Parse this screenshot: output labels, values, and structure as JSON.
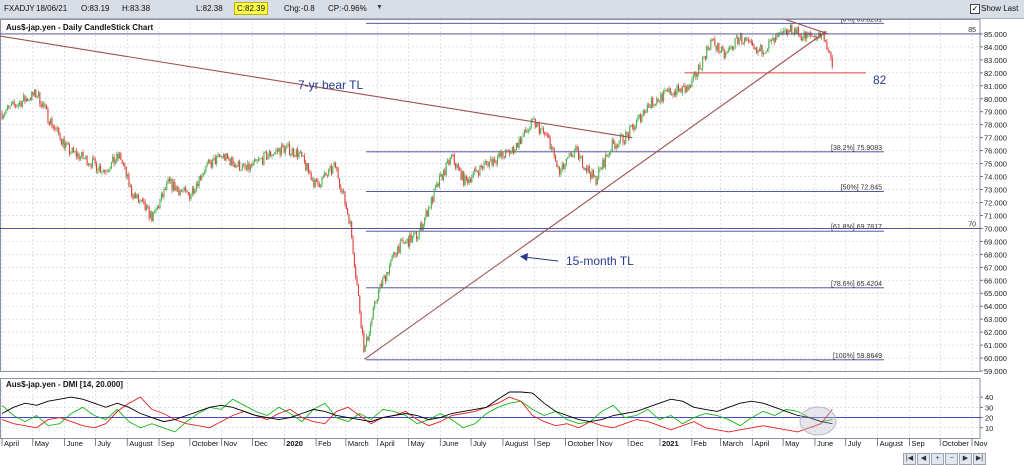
{
  "toolbar": {
    "symbol": "FXADJY",
    "date": "18/06/21",
    "open": "O:83.19",
    "high": "H:83.38",
    "low": "L:82.38",
    "close": "C:82.39",
    "change": "Chg:-0.8",
    "change_pct": "CP:-0.96%",
    "show_last_label": "Show Last",
    "show_last_checked": true
  },
  "colors": {
    "bull_candle": "#4caf50",
    "bear_candle": "#e0403a",
    "trendline": "#a05050",
    "fib_line": "#404090",
    "grid": "#c8cedc",
    "annotation_text": "#283a8c",
    "pdi": "#18b818",
    "mdi": "#e02020",
    "adx": "#000000",
    "highlight": "#b8b8c8"
  },
  "chart_data": [
    {
      "type": "candlestick",
      "title": "Aus$-jap.yen - Daily CandleStick Chart",
      "ylim": [
        59,
        86
      ],
      "y_ticks": [
        "59.000",
        "60.000",
        "61.000",
        "62.000",
        "63.000",
        "64.000",
        "65.000",
        "66.000",
        "67.000",
        "68.000",
        "69.000",
        "70.000",
        "71.000",
        "72.000",
        "73.000",
        "74.000",
        "75.000",
        "76.000",
        "77.000",
        "78.000",
        "79.000",
        "80.000",
        "81.000",
        "82.000",
        "83.000",
        "84.000",
        "85.000"
      ],
      "x_axis_labels": [
        "April",
        "May",
        "June",
        "July",
        "August",
        "Sep",
        "October",
        "Nov",
        "Dec",
        "2020",
        "Feb",
        "March",
        "April",
        "May",
        "June",
        "July",
        "August",
        "Sep",
        "October",
        "Nov",
        "Dec",
        "2021",
        "Feb",
        "March",
        "April",
        "May",
        "June",
        "July",
        "August",
        "Sep",
        "October",
        "Nov"
      ],
      "x_axis_bold": [
        "2020",
        "2021"
      ],
      "close_path_anchors": [
        {
          "date": "2019-04-01",
          "close": 78.9
        },
        {
          "date": "2019-04-20",
          "close": 79.8
        },
        {
          "date": "2019-05-05",
          "close": 80.4
        },
        {
          "date": "2019-05-20",
          "close": 78.0
        },
        {
          "date": "2019-06-05",
          "close": 76.0
        },
        {
          "date": "2019-06-20",
          "close": 75.4
        },
        {
          "date": "2019-07-10",
          "close": 74.5
        },
        {
          "date": "2019-07-25",
          "close": 75.6
        },
        {
          "date": "2019-08-05",
          "close": 72.8
        },
        {
          "date": "2019-08-26",
          "close": 70.8
        },
        {
          "date": "2019-09-10",
          "close": 73.5
        },
        {
          "date": "2019-09-30",
          "close": 72.5
        },
        {
          "date": "2019-10-15",
          "close": 74.6
        },
        {
          "date": "2019-11-01",
          "close": 75.6
        },
        {
          "date": "2019-11-25",
          "close": 74.5
        },
        {
          "date": "2019-12-15",
          "close": 75.6
        },
        {
          "date": "2019-12-31",
          "close": 76.2
        },
        {
          "date": "2020-01-15",
          "close": 75.8
        },
        {
          "date": "2020-02-01",
          "close": 73.3
        },
        {
          "date": "2020-02-20",
          "close": 74.8
        },
        {
          "date": "2020-03-05",
          "close": 70.5
        },
        {
          "date": "2020-03-19",
          "close": 60.5
        },
        {
          "date": "2020-04-01",
          "close": 65.0
        },
        {
          "date": "2020-04-20",
          "close": 68.5
        },
        {
          "date": "2020-05-10",
          "close": 69.5
        },
        {
          "date": "2020-06-01",
          "close": 73.8
        },
        {
          "date": "2020-06-12",
          "close": 75.5
        },
        {
          "date": "2020-06-25",
          "close": 73.6
        },
        {
          "date": "2020-07-15",
          "close": 75.0
        },
        {
          "date": "2020-08-10",
          "close": 76.0
        },
        {
          "date": "2020-08-31",
          "close": 78.2
        },
        {
          "date": "2020-09-15",
          "close": 76.8
        },
        {
          "date": "2020-09-25",
          "close": 74.2
        },
        {
          "date": "2020-10-10",
          "close": 76.0
        },
        {
          "date": "2020-10-30",
          "close": 73.7
        },
        {
          "date": "2020-11-15",
          "close": 76.4
        },
        {
          "date": "2020-12-01",
          "close": 77.2
        },
        {
          "date": "2020-12-20",
          "close": 79.5
        },
        {
          "date": "2021-01-10",
          "close": 80.5
        },
        {
          "date": "2021-01-30",
          "close": 80.8
        },
        {
          "date": "2021-02-20",
          "close": 84.5
        },
        {
          "date": "2021-03-05",
          "close": 83.3
        },
        {
          "date": "2021-03-20",
          "close": 84.8
        },
        {
          "date": "2021-04-05",
          "close": 83.5
        },
        {
          "date": "2021-04-25",
          "close": 84.6
        },
        {
          "date": "2021-05-10",
          "close": 85.4
        },
        {
          "date": "2021-05-20",
          "close": 84.8
        },
        {
          "date": "2021-06-10",
          "close": 84.9
        },
        {
          "date": "2021-06-18",
          "close": 82.39
        }
      ],
      "fib_levels": [
        {
          "label": "[0%] 85.8251",
          "value": 85.8251
        },
        {
          "label": "[38.2%] 75.9083",
          "value": 75.9083
        },
        {
          "label": "[50%] 72.845",
          "value": 72.845
        },
        {
          "label": "[61.8%] 69.7817",
          "value": 69.7817
        },
        {
          "label": "[78.6%] 65.4204",
          "value": 65.4204
        },
        {
          "label": "[100%] 59.8649",
          "value": 59.8649
        }
      ],
      "horizontal_lines": [
        {
          "label": "85",
          "value": 85
        },
        {
          "label": "70",
          "value": 70
        },
        {
          "label": "82",
          "value": 82
        }
      ],
      "trendlines": [
        {
          "label": "7-yr bear TL",
          "from": {
            "date": "2019-03-25",
            "value": 84.9
          },
          "to": {
            "date": "2020-12-05",
            "value": 77.0
          }
        },
        {
          "label": "15-month TL",
          "from": {
            "date": "2020-03-19",
            "value": 59.9
          },
          "to": {
            "date": "2021-06-12",
            "value": 85.2
          }
        },
        {
          "label": "",
          "from": {
            "date": "2021-05-04",
            "value": 86.1
          },
          "to": {
            "date": "2021-06-14",
            "value": 85.0
          }
        }
      ],
      "annotations": [
        "7-yr bear TL",
        "15-month TL",
        "82"
      ]
    },
    {
      "type": "line",
      "title": "Aus$-jap.yen - DMI [14, 20.000]",
      "ylim": [
        0,
        45
      ],
      "y_ticks": [
        "10",
        "20",
        "30",
        "40"
      ],
      "reference_line": 20,
      "series": [
        {
          "key": "pdi",
          "values": [
            32,
            22,
            16,
            22,
            12,
            14,
            24,
            30,
            22,
            18,
            28,
            16,
            10,
            14,
            10,
            6,
            16,
            24,
            30,
            28,
            38,
            32,
            26,
            22,
            30,
            24,
            16,
            28,
            34,
            20,
            16,
            24,
            18,
            28,
            26,
            22,
            14,
            18,
            24,
            18,
            10,
            14,
            24,
            30,
            34,
            36,
            28,
            22,
            26,
            18,
            14,
            16,
            26,
            32,
            20,
            22,
            28,
            18,
            22,
            14,
            20,
            24,
            22,
            18,
            12,
            20,
            26,
            22,
            28,
            26,
            20,
            16,
            18
          ]
        },
        {
          "key": "mdi",
          "values": [
            18,
            14,
            12,
            10,
            18,
            20,
            16,
            12,
            10,
            14,
            26,
            34,
            40,
            28,
            24,
            18,
            14,
            12,
            10,
            16,
            22,
            26,
            22,
            18,
            24,
            28,
            20,
            16,
            14,
            26,
            30,
            22,
            14,
            20,
            22,
            26,
            18,
            12,
            16,
            22,
            24,
            26,
            30,
            34,
            40,
            36,
            22,
            16,
            12,
            14,
            10,
            16,
            12,
            10,
            14,
            18,
            16,
            12,
            8,
            12,
            16,
            10,
            8,
            6,
            8,
            10,
            12,
            10,
            8,
            6,
            10,
            14,
            28
          ]
        },
        {
          "key": "adx",
          "values": [
            24,
            30,
            34,
            32,
            36,
            38,
            40,
            38,
            34,
            30,
            34,
            30,
            24,
            20,
            16,
            18,
            22,
            26,
            30,
            32,
            30,
            26,
            22,
            20,
            18,
            20,
            24,
            28,
            26,
            22,
            20,
            18,
            16,
            20,
            22,
            24,
            22,
            18,
            20,
            24,
            26,
            28,
            30,
            38,
            46,
            50,
            44,
            34,
            26,
            22,
            18,
            16,
            18,
            22,
            24,
            26,
            30,
            34,
            38,
            36,
            30,
            28,
            26,
            30,
            34,
            36,
            34,
            30,
            26,
            22,
            20,
            16,
            14
          ]
        }
      ],
      "x_axis_labels": [
        "April",
        "May",
        "June",
        "July",
        "August",
        "Sep",
        "October",
        "Nov",
        "Dec",
        "2020",
        "Feb",
        "March",
        "April",
        "May",
        "June",
        "July",
        "August",
        "Sep",
        "October",
        "Nov",
        "Dec",
        "2021",
        "Feb",
        "March",
        "April",
        "May",
        "June",
        "July",
        "August",
        "Sep",
        "October",
        "Nov"
      ],
      "x_axis_bold": [
        "2020",
        "2021"
      ]
    }
  ]
}
